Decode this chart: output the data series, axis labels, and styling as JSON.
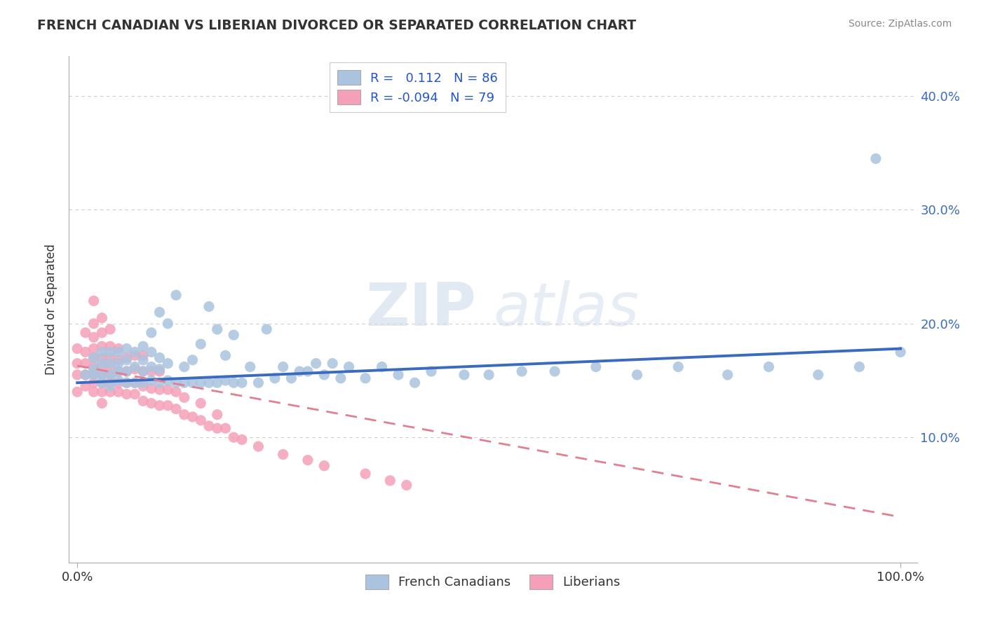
{
  "title": "FRENCH CANADIAN VS LIBERIAN DIVORCED OR SEPARATED CORRELATION CHART",
  "source": "Source: ZipAtlas.com",
  "ylabel": "Divorced or Separated",
  "ytick_vals": [
    0.0,
    0.1,
    0.2,
    0.3,
    0.4
  ],
  "ytick_labels": [
    "",
    "10.0%",
    "20.0%",
    "30.0%",
    "40.0%"
  ],
  "xtick_vals": [
    0.0,
    1.0
  ],
  "xtick_labels": [
    "0.0%",
    "100.0%"
  ],
  "xlim": [
    -0.01,
    1.02
  ],
  "ylim": [
    -0.01,
    0.435
  ],
  "blue_R": 0.112,
  "blue_N": 86,
  "pink_R": -0.094,
  "pink_N": 79,
  "blue_dot_color": "#aac4df",
  "pink_dot_color": "#f5a0b8",
  "blue_line_color": "#3a6bbf",
  "pink_line_color": "#e08090",
  "watermark_zip": "ZIP",
  "watermark_atlas": "atlas",
  "legend_label_blue": "French Canadians",
  "legend_label_pink": "Liberians",
  "blue_line_x0": 0.0,
  "blue_line_y0": 0.148,
  "blue_line_x1": 1.0,
  "blue_line_y1": 0.178,
  "pink_line_x0": 0.0,
  "pink_line_y0": 0.163,
  "pink_line_x1": 1.0,
  "pink_line_y1": 0.03,
  "blue_scatter_x": [
    0.01,
    0.02,
    0.02,
    0.02,
    0.03,
    0.03,
    0.03,
    0.03,
    0.04,
    0.04,
    0.04,
    0.04,
    0.05,
    0.05,
    0.05,
    0.05,
    0.06,
    0.06,
    0.06,
    0.06,
    0.07,
    0.07,
    0.07,
    0.08,
    0.08,
    0.08,
    0.08,
    0.09,
    0.09,
    0.09,
    0.09,
    0.1,
    0.1,
    0.1,
    0.1,
    0.11,
    0.11,
    0.11,
    0.12,
    0.12,
    0.13,
    0.13,
    0.14,
    0.14,
    0.15,
    0.15,
    0.16,
    0.16,
    0.17,
    0.17,
    0.18,
    0.18,
    0.19,
    0.19,
    0.2,
    0.21,
    0.22,
    0.23,
    0.24,
    0.25,
    0.26,
    0.27,
    0.28,
    0.29,
    0.3,
    0.31,
    0.32,
    0.33,
    0.35,
    0.37,
    0.39,
    0.41,
    0.43,
    0.47,
    0.5,
    0.54,
    0.58,
    0.63,
    0.68,
    0.73,
    0.79,
    0.84,
    0.9,
    0.95,
    0.97,
    1.0
  ],
  "blue_scatter_y": [
    0.155,
    0.155,
    0.16,
    0.17,
    0.148,
    0.155,
    0.165,
    0.175,
    0.145,
    0.155,
    0.165,
    0.175,
    0.15,
    0.158,
    0.165,
    0.175,
    0.148,
    0.158,
    0.168,
    0.178,
    0.148,
    0.162,
    0.175,
    0.148,
    0.158,
    0.168,
    0.18,
    0.15,
    0.162,
    0.175,
    0.192,
    0.148,
    0.16,
    0.17,
    0.21,
    0.15,
    0.165,
    0.2,
    0.148,
    0.225,
    0.148,
    0.162,
    0.148,
    0.168,
    0.148,
    0.182,
    0.148,
    0.215,
    0.148,
    0.195,
    0.15,
    0.172,
    0.148,
    0.19,
    0.148,
    0.162,
    0.148,
    0.195,
    0.152,
    0.162,
    0.152,
    0.158,
    0.158,
    0.165,
    0.155,
    0.165,
    0.152,
    0.162,
    0.152,
    0.162,
    0.155,
    0.148,
    0.158,
    0.155,
    0.155,
    0.158,
    0.158,
    0.162,
    0.155,
    0.162,
    0.155,
    0.162,
    0.155,
    0.162,
    0.345,
    0.175
  ],
  "pink_scatter_x": [
    0.0,
    0.0,
    0.0,
    0.0,
    0.01,
    0.01,
    0.01,
    0.01,
    0.01,
    0.02,
    0.02,
    0.02,
    0.02,
    0.02,
    0.02,
    0.02,
    0.02,
    0.03,
    0.03,
    0.03,
    0.03,
    0.03,
    0.03,
    0.03,
    0.03,
    0.04,
    0.04,
    0.04,
    0.04,
    0.04,
    0.04,
    0.04,
    0.05,
    0.05,
    0.05,
    0.05,
    0.05,
    0.06,
    0.06,
    0.06,
    0.06,
    0.07,
    0.07,
    0.07,
    0.07,
    0.08,
    0.08,
    0.08,
    0.08,
    0.09,
    0.09,
    0.09,
    0.1,
    0.1,
    0.1,
    0.11,
    0.11,
    0.12,
    0.12,
    0.13,
    0.13,
    0.14,
    0.15,
    0.15,
    0.16,
    0.17,
    0.17,
    0.18,
    0.19,
    0.2,
    0.22,
    0.25,
    0.28,
    0.3,
    0.35,
    0.38,
    0.4,
    0.02,
    0.03
  ],
  "pink_scatter_y": [
    0.14,
    0.155,
    0.165,
    0.178,
    0.145,
    0.155,
    0.165,
    0.175,
    0.192,
    0.14,
    0.148,
    0.155,
    0.162,
    0.17,
    0.178,
    0.188,
    0.2,
    0.14,
    0.148,
    0.155,
    0.162,
    0.17,
    0.18,
    0.192,
    0.205,
    0.14,
    0.148,
    0.155,
    0.162,
    0.17,
    0.18,
    0.195,
    0.14,
    0.148,
    0.158,
    0.168,
    0.178,
    0.138,
    0.148,
    0.158,
    0.17,
    0.138,
    0.148,
    0.16,
    0.172,
    0.132,
    0.145,
    0.158,
    0.172,
    0.13,
    0.143,
    0.158,
    0.128,
    0.142,
    0.158,
    0.128,
    0.142,
    0.125,
    0.14,
    0.12,
    0.135,
    0.118,
    0.115,
    0.13,
    0.11,
    0.108,
    0.12,
    0.108,
    0.1,
    0.098,
    0.092,
    0.085,
    0.08,
    0.075,
    0.068,
    0.062,
    0.058,
    0.22,
    0.13
  ]
}
